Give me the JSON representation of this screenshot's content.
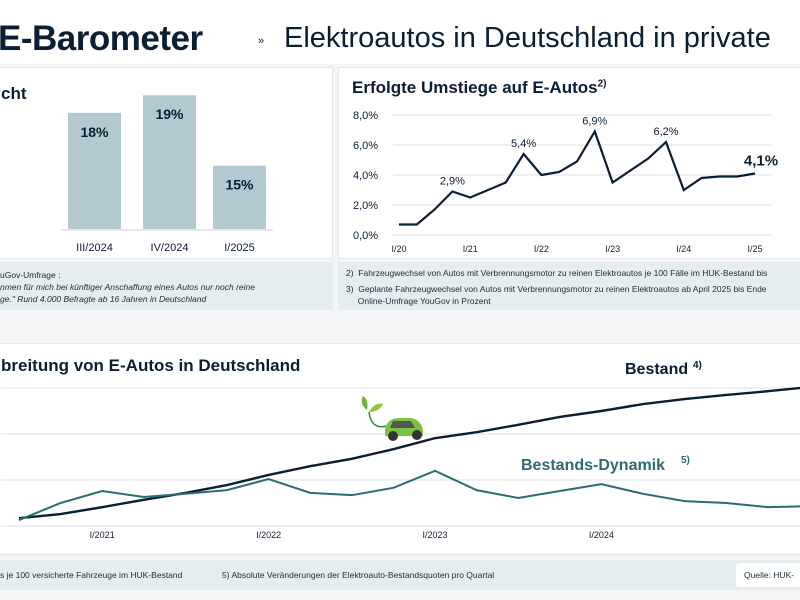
{
  "header": {
    "title": "E-Barometer",
    "separator": "»",
    "subtitle": "Elektroautos in Deutschland in private"
  },
  "panel1": {
    "title": "cht",
    "note_lines": [
      "uGov-Umfrage :",
      "nmen für mich bei künftiger Anschaffung eines Autos nur noch reine",
      "ge.\" Rund 4.000 Befragte ab 16 Jahren in Deutschland"
    ]
  },
  "panel2": {
    "title": "Erfolgte Umstiege auf E-Autos",
    "title_sup": "2)",
    "notes": [
      "2)  Fahrzeugwechsel von Autos mit Verbrennungsmotor zu reinen Elektroautos je 100 Fälle im HUK-Bestand bis",
      "3)  Geplante Fahrzeugwechsel von Autos mit Verbrennungsmotor zu reinen Elektroautos ab April 2025 bis Ende",
      "     Online-Umfrage YouGov in Prozent"
    ]
  },
  "panel3": {
    "title": "breitung von E-Autos in Deutschland",
    "notes": [
      "s je 100 versicherte Fahrzeuge im HUK-Bestand",
      "5) Absolute Veränderungen der Elektroauto-Bestandsquoten pro Quartal"
    ],
    "source": "Quelle: HUK-"
  },
  "colors": {
    "bar": "#b3c9cf",
    "line": "#0b1e33",
    "teal": "#2e6b72",
    "grid": "#e3e8ea"
  },
  "chart_data": [
    {
      "type": "bar",
      "categories": [
        "III/2024",
        "IV/2024",
        "I/2025"
      ],
      "values": [
        18,
        19,
        15
      ],
      "data_labels": [
        "18%",
        "19%",
        "15%"
      ]
    },
    {
      "type": "line",
      "title": "Erfolgte Umstiege auf E-Autos",
      "ylim": [
        0,
        8
      ],
      "yticks": [
        "0,0%",
        "2,0%",
        "4,0%",
        "6,0%",
        "8,0%"
      ],
      "xticks": [
        "I/20",
        "I/21",
        "I/22",
        "I/23",
        "I/24",
        "I/25"
      ],
      "grid": true,
      "series": [
        {
          "values": [
            0.7,
            0.7,
            1.7,
            2.9,
            2.5,
            3.0,
            3.5,
            5.4,
            4.0,
            4.2,
            4.9,
            6.9,
            3.5,
            4.3,
            5.1,
            6.2,
            3.0,
            3.8,
            3.9,
            3.9,
            4.1
          ]
        }
      ],
      "annotations": [
        {
          "index": 3,
          "label": "2,9%"
        },
        {
          "index": 7,
          "label": "5,4%"
        },
        {
          "index": 11,
          "label": "6,9%"
        },
        {
          "index": 15,
          "label": "6,2%"
        },
        {
          "index": 20,
          "label": "4,1%",
          "bold": true
        }
      ]
    },
    {
      "type": "line",
      "title": "breitung von E-Autos in Deutschland",
      "xticks": [
        "I/2021",
        "I/2022",
        "I/2023",
        "I/2024"
      ],
      "grid": true,
      "x": [
        "III/2020",
        "IV/2020",
        "I/2021",
        "II/2021",
        "III/2021",
        "IV/2021",
        "I/2022",
        "II/2022",
        "III/2022",
        "IV/2022",
        "I/2023",
        "II/2023",
        "III/2023",
        "IV/2023",
        "I/2024",
        "II/2024",
        "III/2024",
        "IV/2024",
        "I/2025",
        "II/2025"
      ],
      "series": [
        {
          "name": "Bestand",
          "sup": "4)",
          "values": [
            0.17,
            0.26,
            0.41,
            0.57,
            0.72,
            0.89,
            1.11,
            1.3,
            1.46,
            1.67,
            1.91,
            2.04,
            2.2,
            2.37,
            2.5,
            2.65,
            2.76,
            2.85,
            2.93,
            3.02
          ]
        },
        {
          "name": "Bestands-Dynamik",
          "sup": "5)",
          "values": [
            0.13,
            0.5,
            0.76,
            0.63,
            0.7,
            0.78,
            1.02,
            0.72,
            0.67,
            0.83,
            1.2,
            0.78,
            0.61,
            0.76,
            0.91,
            0.7,
            0.54,
            0.5,
            0.41,
            0.43
          ]
        }
      ]
    }
  ]
}
